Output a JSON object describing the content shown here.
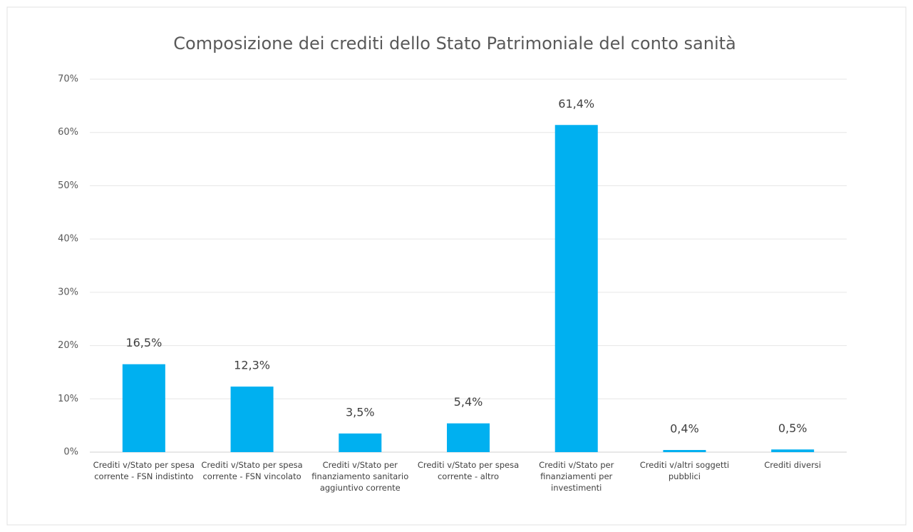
{
  "chart_data": {
    "type": "bar",
    "title": "Composizione dei crediti dello Stato Patrimoniale del conto sanità",
    "categories": [
      "Crediti v/Stato per spesa corrente - FSN indistinto",
      "Crediti v/Stato per spesa corrente - FSN vincolato",
      "Crediti v/Stato per finanziamento sanitario aggiuntivo corrente",
      "Crediti v/Stato per spesa corrente - altro",
      "Crediti v/Stato per finanziamenti per investimenti",
      "Crediti v/altri soggetti pubblici",
      "Crediti diversi"
    ],
    "values": [
      16.5,
      12.3,
      3.5,
      5.4,
      61.4,
      0.4,
      0.5
    ],
    "value_labels": [
      "16,5%",
      "12,3%",
      "3,5%",
      "5,4%",
      "61,4%",
      "0,4%",
      "0,5%"
    ],
    "color": "#00b0f0",
    "ylim": [
      0,
      70
    ],
    "yticks": [
      {
        "value": 0,
        "label": "0%"
      },
      {
        "value": 10,
        "label": "10%"
      },
      {
        "value": 20,
        "label": "20%"
      },
      {
        "value": 30,
        "label": "30%"
      },
      {
        "value": 40,
        "label": "40%"
      },
      {
        "value": 50,
        "label": "50%"
      },
      {
        "value": 60,
        "label": "60%"
      },
      {
        "value": 70,
        "label": "70%"
      }
    ],
    "grid": true
  }
}
